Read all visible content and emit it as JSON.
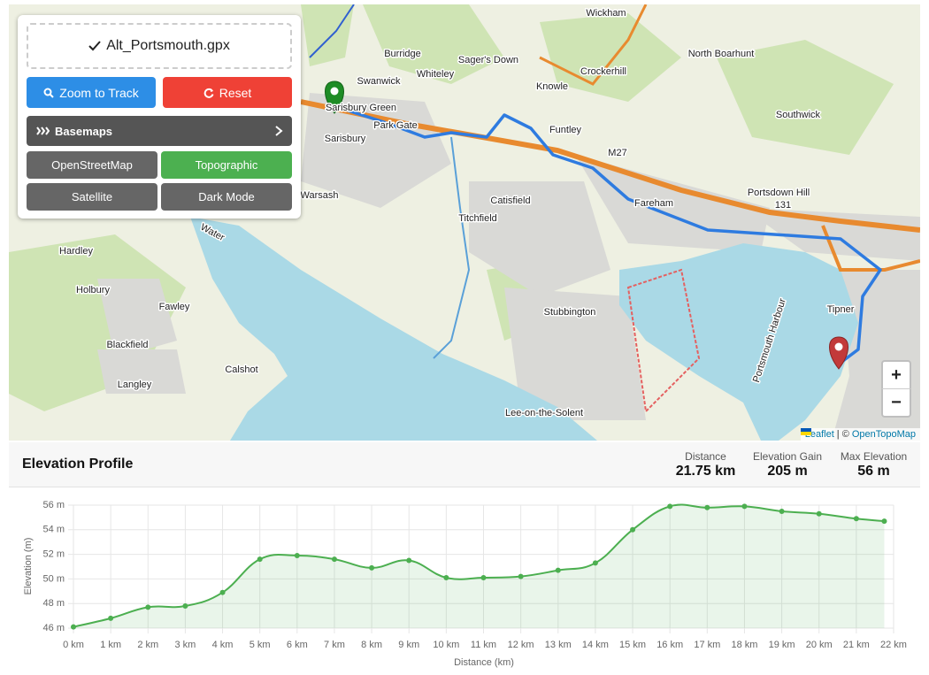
{
  "controls": {
    "file": "Alt_Portsmouth.gpx",
    "zoom_button": "Zoom to Track",
    "reset_button": "Reset",
    "basemaps_label": "Basemaps",
    "basemaps": [
      "OpenStreetMap",
      "Topographic",
      "Satellite",
      "Dark Mode"
    ]
  },
  "map": {
    "labels": [
      "Wickham",
      "Burridge",
      "Sager's Down",
      "Whiteley",
      "North Boarhunt",
      "Crockerhill",
      "Swanwick",
      "Knowle",
      "Sarisbury Green",
      "Park Gate",
      "Sarisbury",
      "Funtley",
      "Southwick",
      "M27",
      "Portsdown Hill",
      "131",
      "Warsash",
      "Catisfield",
      "Fareham",
      "Titchfield",
      "Hardley",
      "Holbury",
      "Fawley",
      "Stubbington",
      "Tipner",
      "Blackfield",
      "Portsmouth Harbour",
      "Calshot",
      "Langley",
      "Lee-on-the-Solent",
      "Water"
    ],
    "zoom_in": "+",
    "zoom_out": "−",
    "attribution": {
      "leaflet": "Leaflet",
      "separator": "| ©",
      "source": "OpenTopoMap"
    }
  },
  "elevation": {
    "title": "Elevation Profile",
    "stats": [
      {
        "label": "Distance",
        "value": "21.75 km"
      },
      {
        "label": "Elevation Gain",
        "value": "205 m"
      },
      {
        "label": "Max Elevation",
        "value": "56 m"
      }
    ]
  },
  "chart_data": {
    "type": "line",
    "x_label": "Distance (km)",
    "y_label": "Elevation (m)",
    "x": [
      0,
      1,
      2,
      3,
      4,
      5,
      6,
      7,
      8,
      9,
      10,
      11,
      12,
      13,
      14,
      15,
      16,
      17,
      18,
      19,
      20,
      21,
      21.75
    ],
    "series": [
      {
        "name": "Elevation",
        "color": "#4caf50",
        "values": [
          46.1,
          46.8,
          47.7,
          47.8,
          48.9,
          51.6,
          51.9,
          51.6,
          50.9,
          51.5,
          50.1,
          50.1,
          50.2,
          50.7,
          51.3,
          54.0,
          55.9,
          55.8,
          55.9,
          55.5,
          55.3,
          54.9,
          54.7
        ]
      }
    ],
    "xlim": [
      0,
      22
    ],
    "ylim": [
      46,
      56
    ],
    "xticks": [
      {
        "value": 0,
        "label": "0 km"
      },
      {
        "value": 1,
        "label": "1 km"
      },
      {
        "value": 2,
        "label": "2 km"
      },
      {
        "value": 3,
        "label": "3 km"
      },
      {
        "value": 4,
        "label": "4 km"
      },
      {
        "value": 5,
        "label": "5 km"
      },
      {
        "value": 6,
        "label": "6 km"
      },
      {
        "value": 7,
        "label": "7 km"
      },
      {
        "value": 8,
        "label": "8 km"
      },
      {
        "value": 9,
        "label": "9 km"
      },
      {
        "value": 10,
        "label": "10 km"
      },
      {
        "value": 11,
        "label": "11 km"
      },
      {
        "value": 12,
        "label": "12 km"
      },
      {
        "value": 13,
        "label": "13 km"
      },
      {
        "value": 14,
        "label": "14 km"
      },
      {
        "value": 15,
        "label": "15 km"
      },
      {
        "value": 16,
        "label": "16 km"
      },
      {
        "value": 17,
        "label": "17 km"
      },
      {
        "value": 18,
        "label": "18 km"
      },
      {
        "value": 19,
        "label": "19 km"
      },
      {
        "value": 20,
        "label": "20 km"
      },
      {
        "value": 21,
        "label": "21 km"
      },
      {
        "value": 22,
        "label": "22 km"
      }
    ],
    "yticks": [
      {
        "value": 46,
        "label": "46 m"
      },
      {
        "value": 48,
        "label": "48 m"
      },
      {
        "value": 50,
        "label": "50 m"
      },
      {
        "value": 52,
        "label": "52 m"
      },
      {
        "value": 54,
        "label": "54 m"
      },
      {
        "value": 56,
        "label": "56 m"
      }
    ],
    "grid": true,
    "fill": true
  }
}
